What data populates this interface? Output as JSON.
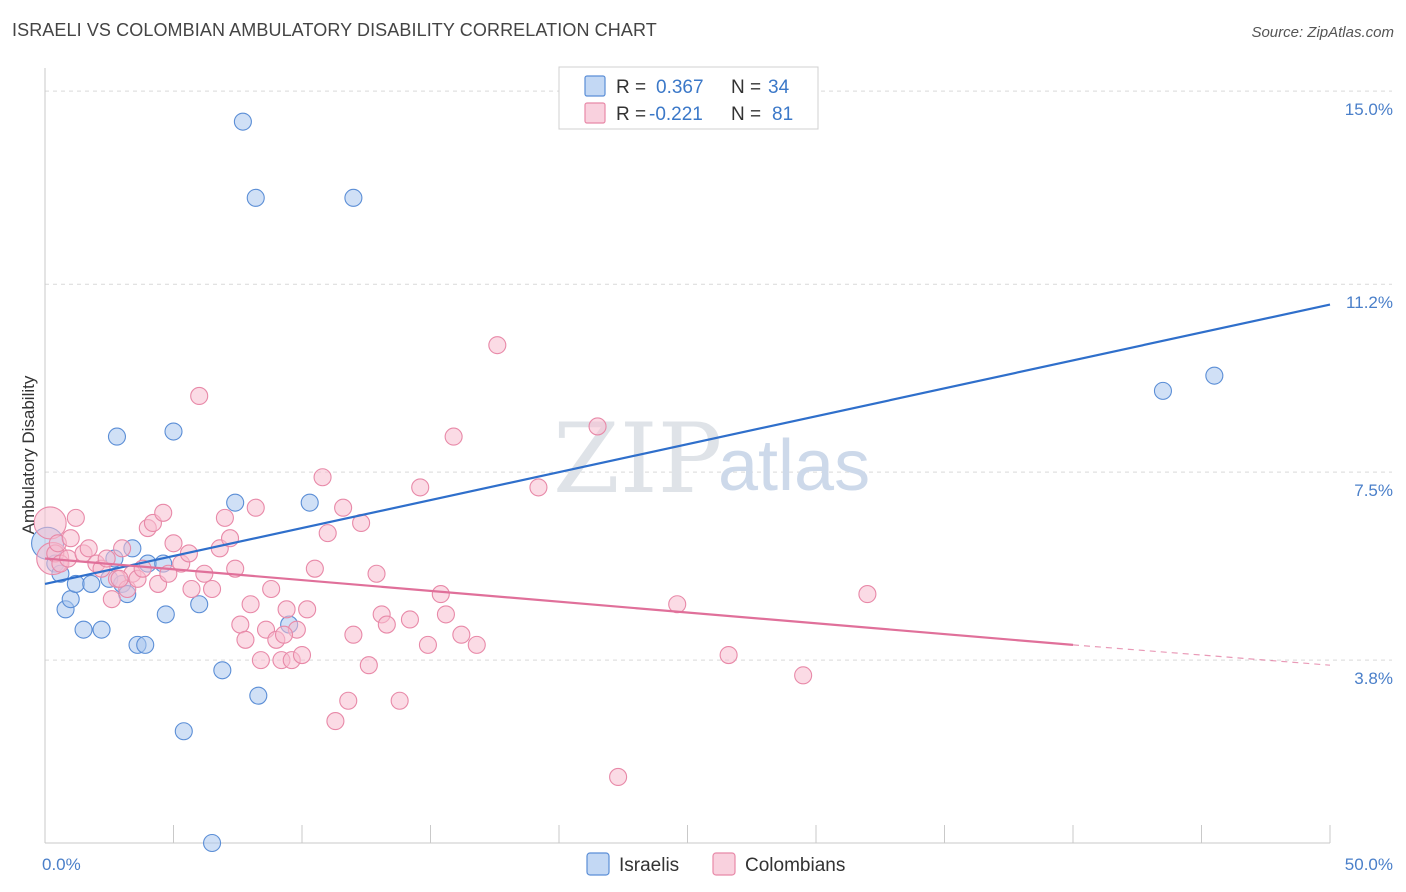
{
  "title": "ISRAELI VS COLOMBIAN AMBULATORY DISABILITY CORRELATION CHART",
  "source": "Source: ZipAtlas.com",
  "watermark": {
    "zip": "ZIP",
    "atlas": "atlas"
  },
  "colors": {
    "israelis_fill": "#a9c7ef",
    "israelis_stroke": "#5b8ed6",
    "israelis_line": "#2f6fcb",
    "colombians_fill": "#f7bdd0",
    "colombians_stroke": "#e889a8",
    "colombians_line": "#e0709a",
    "tick_label": "#4a7fc9",
    "grid": "#d9d9d9"
  },
  "legend": {
    "rows": [
      {
        "r_label": "R =",
        "r_value": "0.367",
        "n_label": "N =",
        "n_value": "34"
      },
      {
        "r_label": "R =",
        "r_value": "-0.221",
        "n_label": "N =",
        "n_value": "81"
      }
    ]
  },
  "chart_data": {
    "type": "scatter",
    "title": "ISRAELI VS COLOMBIAN AMBULATORY DISABILITY CORRELATION CHART",
    "xlabel": "",
    "ylabel": "Ambulatory Disability",
    "xlim": [
      0,
      50
    ],
    "ylim": [
      0,
      16
    ],
    "x_tick_labels": [
      "0.0%",
      "50.0%"
    ],
    "y_ticks": [
      3.8,
      7.5,
      11.2,
      15.0
    ],
    "y_tick_labels": [
      "3.8%",
      "7.5%",
      "11.2%",
      "15.0%"
    ],
    "grid": true,
    "legend_position": "top-center",
    "series": [
      {
        "name": "Israelis",
        "r": 0.367,
        "n": 34,
        "trend": {
          "x": [
            0,
            50
          ],
          "y": [
            5.3,
            10.8
          ]
        },
        "points": [
          [
            0.1,
            6.1
          ],
          [
            0.4,
            5.7
          ],
          [
            0.6,
            5.5
          ],
          [
            0.8,
            4.8
          ],
          [
            1.0,
            5.0
          ],
          [
            1.2,
            5.3
          ],
          [
            1.5,
            4.4
          ],
          [
            1.8,
            5.3
          ],
          [
            2.2,
            4.4
          ],
          [
            2.5,
            5.4
          ],
          [
            2.7,
            5.8
          ],
          [
            2.8,
            8.2
          ],
          [
            3.0,
            5.3
          ],
          [
            3.2,
            5.1
          ],
          [
            3.4,
            6.0
          ],
          [
            3.6,
            4.1
          ],
          [
            3.9,
            4.1
          ],
          [
            4.0,
            5.7
          ],
          [
            4.6,
            5.7
          ],
          [
            4.7,
            4.7
          ],
          [
            5.0,
            8.3
          ],
          [
            5.4,
            2.4
          ],
          [
            6.0,
            4.9
          ],
          [
            6.5,
            0.2
          ],
          [
            6.9,
            3.6
          ],
          [
            7.4,
            6.9
          ],
          [
            7.7,
            14.4
          ],
          [
            8.2,
            12.9
          ],
          [
            8.3,
            3.1
          ],
          [
            9.5,
            4.5
          ],
          [
            10.3,
            6.9
          ],
          [
            12.0,
            12.9
          ],
          [
            43.5,
            9.1
          ],
          [
            45.5,
            9.4
          ]
        ]
      },
      {
        "name": "Colombians",
        "r": -0.221,
        "n": 81,
        "trend": {
          "x": [
            0,
            40
          ],
          "y": [
            5.8,
            4.1
          ]
        },
        "trend_dashed": {
          "x": [
            40,
            50
          ],
          "y": [
            4.1,
            3.7
          ]
        },
        "points": [
          [
            0.2,
            6.5
          ],
          [
            0.3,
            5.8
          ],
          [
            0.4,
            5.9
          ],
          [
            0.6,
            5.7
          ],
          [
            0.9,
            5.8
          ],
          [
            1.2,
            6.6
          ],
          [
            1.5,
            5.9
          ],
          [
            1.7,
            6.0
          ],
          [
            2.0,
            5.7
          ],
          [
            2.2,
            5.6
          ],
          [
            2.4,
            5.8
          ],
          [
            2.6,
            5.0
          ],
          [
            2.8,
            5.4
          ],
          [
            3.0,
            6.0
          ],
          [
            3.2,
            5.2
          ],
          [
            3.4,
            5.5
          ],
          [
            3.6,
            5.4
          ],
          [
            3.8,
            5.6
          ],
          [
            4.0,
            6.4
          ],
          [
            4.2,
            6.5
          ],
          [
            4.4,
            5.3
          ],
          [
            4.6,
            6.7
          ],
          [
            4.8,
            5.5
          ],
          [
            5.0,
            6.1
          ],
          [
            5.3,
            5.7
          ],
          [
            5.6,
            5.9
          ],
          [
            6.0,
            9.0
          ],
          [
            6.2,
            5.5
          ],
          [
            6.5,
            5.2
          ],
          [
            6.8,
            6.0
          ],
          [
            7.0,
            6.6
          ],
          [
            7.2,
            6.2
          ],
          [
            7.4,
            5.6
          ],
          [
            7.6,
            4.5
          ],
          [
            7.8,
            4.2
          ],
          [
            8.0,
            4.9
          ],
          [
            8.2,
            6.8
          ],
          [
            8.4,
            3.8
          ],
          [
            8.6,
            4.4
          ],
          [
            8.8,
            5.2
          ],
          [
            9.0,
            4.2
          ],
          [
            9.2,
            3.8
          ],
          [
            9.4,
            4.8
          ],
          [
            9.6,
            3.8
          ],
          [
            9.8,
            4.4
          ],
          [
            10.0,
            3.9
          ],
          [
            10.2,
            4.8
          ],
          [
            10.5,
            5.6
          ],
          [
            10.8,
            7.4
          ],
          [
            11.0,
            6.3
          ],
          [
            11.3,
            2.6
          ],
          [
            11.6,
            6.8
          ],
          [
            11.8,
            3.0
          ],
          [
            12.0,
            4.3
          ],
          [
            12.3,
            6.5
          ],
          [
            12.6,
            3.7
          ],
          [
            12.9,
            5.5
          ],
          [
            13.1,
            4.7
          ],
          [
            13.3,
            4.5
          ],
          [
            13.8,
            3.0
          ],
          [
            14.2,
            4.6
          ],
          [
            14.6,
            7.2
          ],
          [
            14.9,
            4.1
          ],
          [
            15.4,
            5.1
          ],
          [
            15.6,
            4.7
          ],
          [
            15.9,
            8.2
          ],
          [
            16.2,
            4.3
          ],
          [
            16.8,
            4.1
          ],
          [
            17.6,
            10.0
          ],
          [
            19.2,
            7.2
          ],
          [
            21.5,
            8.4
          ],
          [
            22.3,
            1.5
          ],
          [
            24.6,
            4.9
          ],
          [
            26.6,
            3.9
          ],
          [
            29.5,
            3.5
          ],
          [
            32.0,
            5.1
          ],
          [
            0.5,
            6.1
          ],
          [
            1.0,
            6.2
          ],
          [
            2.9,
            5.4
          ],
          [
            5.7,
            5.2
          ],
          [
            9.3,
            4.3
          ]
        ]
      }
    ]
  },
  "bottom_legend": {
    "items": [
      {
        "label": "Israelis"
      },
      {
        "label": "Colombians"
      }
    ]
  }
}
